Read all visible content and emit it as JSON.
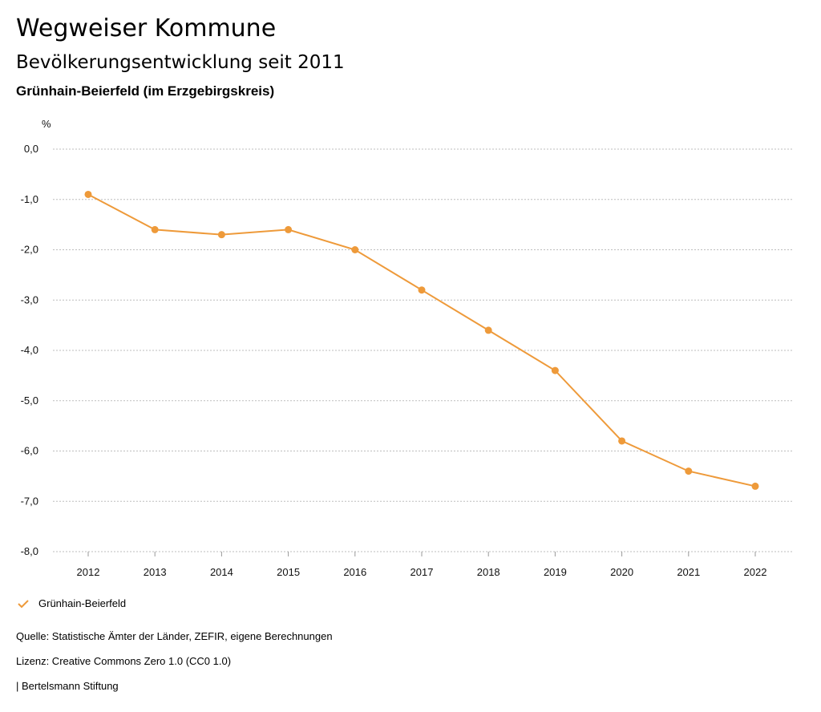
{
  "header": {
    "title": "Wegweiser Kommune",
    "subtitle": "Bevölkerungsentwicklung seit 2011",
    "region": "Grünhain-Beierfeld (im Erzgebirgskreis)"
  },
  "chart_data": {
    "type": "line",
    "ylabel": "%",
    "x": [
      "2012",
      "2013",
      "2014",
      "2015",
      "2016",
      "2017",
      "2018",
      "2019",
      "2020",
      "2021",
      "2022"
    ],
    "series": [
      {
        "name": "Grünhain-Beierfeld",
        "color": "#ee9a3a",
        "values": [
          -0.9,
          -1.6,
          -1.7,
          -1.6,
          -2.0,
          -2.8,
          -3.6,
          -4.4,
          -5.8,
          -6.4,
          -6.7
        ]
      }
    ],
    "ylim": [
      -8,
      0
    ],
    "yticks": [
      "0,0",
      "-1,0",
      "-2,0",
      "-3,0",
      "-4,0",
      "-5,0",
      "-6,0",
      "-7,0",
      "-8,0"
    ],
    "grid": true,
    "legend_position": "bottom-left"
  },
  "legend": {
    "label": "Grünhain-Beierfeld",
    "icon": "check-icon"
  },
  "footer": {
    "source": "Quelle: Statistische Ämter der Länder, ZEFIR, eigene Berechnungen",
    "license": "Lizenz: Creative Commons Zero 1.0 (CC0 1.0)",
    "publisher": "| Bertelsmann Stiftung"
  }
}
